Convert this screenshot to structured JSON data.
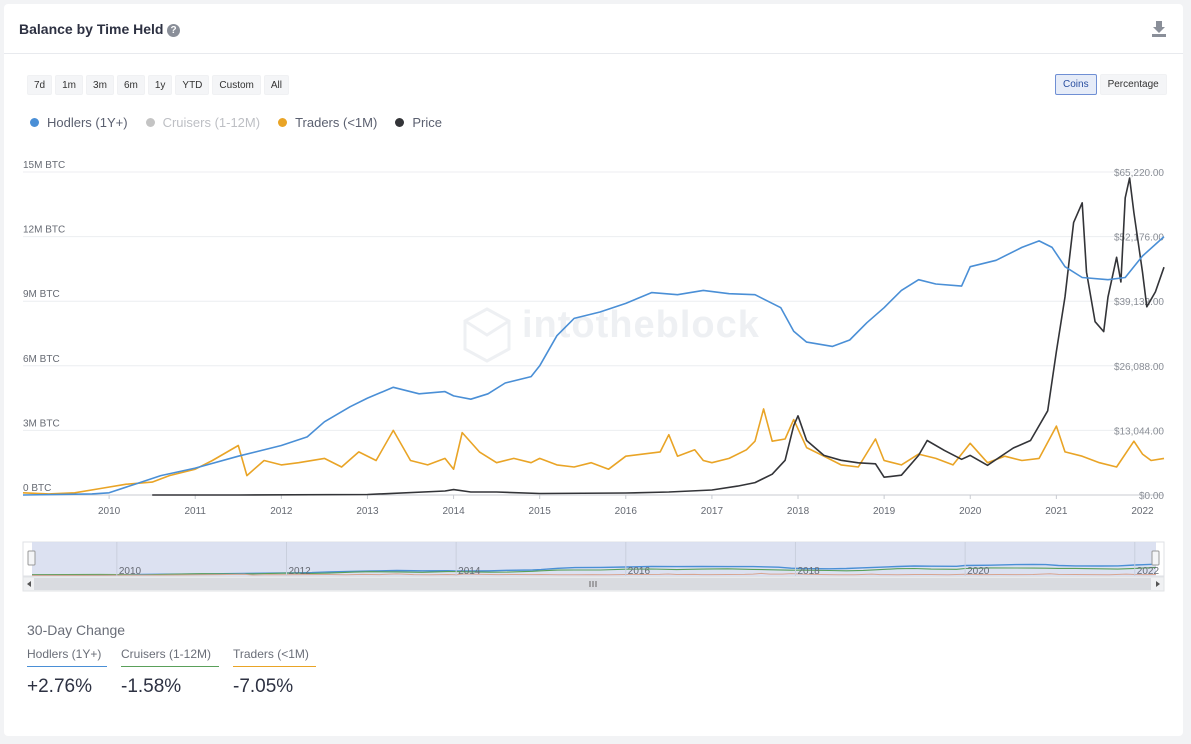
{
  "header": {
    "title": "Balance by Time Held",
    "help_icon": "?",
    "download_icon": "download-icon"
  },
  "range_buttons": [
    "7d",
    "1m",
    "3m",
    "6m",
    "1y",
    "YTD",
    "Custom",
    "All"
  ],
  "mode_buttons": [
    {
      "label": "Coins",
      "active": true
    },
    {
      "label": "Percentage",
      "active": false
    }
  ],
  "legend": [
    {
      "label": "Hodlers (1Y+)",
      "color": "#4a8fd6",
      "enabled": true
    },
    {
      "label": "Cruisers (1-12M)",
      "color": "#c4c4c4",
      "enabled": false
    },
    {
      "label": "Traders (<1M)",
      "color": "#e9a426",
      "enabled": true
    },
    {
      "label": "Price",
      "color": "#333438",
      "enabled": true
    }
  ],
  "watermark": "intotheblock",
  "chart_data": {
    "type": "line",
    "y_left": {
      "ticks": [
        "0 BTC",
        "3M BTC",
        "6M BTC",
        "9M BTC",
        "12M BTC",
        "15M BTC"
      ],
      "range": [
        0,
        15
      ]
    },
    "y_right": {
      "ticks": [
        "$0.00",
        "$13,044.00",
        "$26,088.00",
        "$39,132.00",
        "$52,176.00",
        "$65,220.00"
      ],
      "range": [
        0,
        65220
      ]
    },
    "x_ticks": [
      "2010",
      "2011",
      "2012",
      "2013",
      "2014",
      "2015",
      "2016",
      "2017",
      "2018",
      "2019",
      "2020",
      "2021",
      "2022"
    ],
    "x_range": [
      2009.0,
      2022.25
    ],
    "series": [
      {
        "name": "Hodlers (1Y+)",
        "axis": "left",
        "color": "#4a8fd6",
        "points": [
          [
            2009.0,
            0
          ],
          [
            2009.8,
            0.05
          ],
          [
            2010.0,
            0.1
          ],
          [
            2010.3,
            0.5
          ],
          [
            2010.6,
            0.9
          ],
          [
            2011.0,
            1.25
          ],
          [
            2011.5,
            1.8
          ],
          [
            2012.0,
            2.3
          ],
          [
            2012.3,
            2.7
          ],
          [
            2012.5,
            3.4
          ],
          [
            2012.8,
            4.1
          ],
          [
            2013.0,
            4.5
          ],
          [
            2013.3,
            5.0
          ],
          [
            2013.6,
            4.7
          ],
          [
            2013.9,
            4.8
          ],
          [
            2014.0,
            4.6
          ],
          [
            2014.2,
            4.45
          ],
          [
            2014.4,
            4.7
          ],
          [
            2014.6,
            5.2
          ],
          [
            2014.9,
            5.5
          ],
          [
            2015.0,
            6.0
          ],
          [
            2015.2,
            7.4
          ],
          [
            2015.4,
            8.2
          ],
          [
            2015.7,
            8.5
          ],
          [
            2016.0,
            8.9
          ],
          [
            2016.3,
            9.4
          ],
          [
            2016.6,
            9.3
          ],
          [
            2016.9,
            9.5
          ],
          [
            2017.2,
            9.35
          ],
          [
            2017.5,
            9.3
          ],
          [
            2017.8,
            8.7
          ],
          [
            2017.95,
            7.6
          ],
          [
            2018.1,
            7.1
          ],
          [
            2018.4,
            6.9
          ],
          [
            2018.6,
            7.2
          ],
          [
            2018.8,
            8.0
          ],
          [
            2019.0,
            8.7
          ],
          [
            2019.2,
            9.5
          ],
          [
            2019.4,
            10.0
          ],
          [
            2019.6,
            9.8
          ],
          [
            2019.9,
            9.7
          ],
          [
            2020.0,
            10.6
          ],
          [
            2020.3,
            10.9
          ],
          [
            2020.6,
            11.5
          ],
          [
            2020.8,
            11.8
          ],
          [
            2020.95,
            11.5
          ],
          [
            2021.1,
            10.6
          ],
          [
            2021.3,
            10.1
          ],
          [
            2021.6,
            10.0
          ],
          [
            2021.8,
            10.1
          ],
          [
            2022.0,
            11.1
          ],
          [
            2022.25,
            12.0
          ]
        ]
      },
      {
        "name": "Traders (<1M)",
        "axis": "left",
        "color": "#e9a426",
        "points": [
          [
            2009.0,
            0.1
          ],
          [
            2009.3,
            0.05
          ],
          [
            2009.6,
            0.1
          ],
          [
            2009.9,
            0.3
          ],
          [
            2010.2,
            0.5
          ],
          [
            2010.5,
            0.6
          ],
          [
            2010.7,
            0.9
          ],
          [
            2011.0,
            1.2
          ],
          [
            2011.2,
            1.6
          ],
          [
            2011.5,
            2.3
          ],
          [
            2011.6,
            0.9
          ],
          [
            2011.8,
            1.6
          ],
          [
            2012.0,
            1.4
          ],
          [
            2012.2,
            1.5
          ],
          [
            2012.5,
            1.7
          ],
          [
            2012.7,
            1.3
          ],
          [
            2012.9,
            2.0
          ],
          [
            2013.1,
            1.6
          ],
          [
            2013.3,
            3.0
          ],
          [
            2013.5,
            1.6
          ],
          [
            2013.7,
            1.4
          ],
          [
            2013.9,
            1.7
          ],
          [
            2014.0,
            1.2
          ],
          [
            2014.1,
            2.9
          ],
          [
            2014.3,
            2.0
          ],
          [
            2014.5,
            1.5
          ],
          [
            2014.7,
            1.7
          ],
          [
            2014.9,
            1.5
          ],
          [
            2015.0,
            1.7
          ],
          [
            2015.2,
            1.4
          ],
          [
            2015.4,
            1.3
          ],
          [
            2015.6,
            1.5
          ],
          [
            2015.8,
            1.2
          ],
          [
            2016.0,
            1.8
          ],
          [
            2016.2,
            1.9
          ],
          [
            2016.4,
            2.0
          ],
          [
            2016.5,
            2.8
          ],
          [
            2016.6,
            1.8
          ],
          [
            2016.8,
            2.1
          ],
          [
            2016.9,
            1.6
          ],
          [
            2017.0,
            1.5
          ],
          [
            2017.2,
            1.7
          ],
          [
            2017.4,
            2.1
          ],
          [
            2017.5,
            2.5
          ],
          [
            2017.6,
            4.0
          ],
          [
            2017.7,
            2.5
          ],
          [
            2017.85,
            2.6
          ],
          [
            2017.95,
            3.5
          ],
          [
            2018.1,
            2.2
          ],
          [
            2018.3,
            1.8
          ],
          [
            2018.5,
            1.4
          ],
          [
            2018.7,
            1.3
          ],
          [
            2018.9,
            2.6
          ],
          [
            2019.0,
            1.6
          ],
          [
            2019.2,
            1.4
          ],
          [
            2019.4,
            1.9
          ],
          [
            2019.6,
            1.7
          ],
          [
            2019.8,
            1.4
          ],
          [
            2020.0,
            2.4
          ],
          [
            2020.2,
            1.5
          ],
          [
            2020.4,
            1.8
          ],
          [
            2020.6,
            1.6
          ],
          [
            2020.8,
            1.7
          ],
          [
            2021.0,
            3.2
          ],
          [
            2021.1,
            2.0
          ],
          [
            2021.3,
            1.8
          ],
          [
            2021.5,
            1.5
          ],
          [
            2021.7,
            1.3
          ],
          [
            2021.9,
            2.5
          ],
          [
            2022.0,
            1.9
          ],
          [
            2022.1,
            1.6
          ],
          [
            2022.25,
            1.7
          ]
        ]
      },
      {
        "name": "Price",
        "axis": "right",
        "color": "#333438",
        "points": [
          [
            2010.5,
            0
          ],
          [
            2011.5,
            0
          ],
          [
            2013.0,
            100
          ],
          [
            2013.9,
            800
          ],
          [
            2014.0,
            1100
          ],
          [
            2014.2,
            600
          ],
          [
            2014.5,
            600
          ],
          [
            2015.0,
            300
          ],
          [
            2016.0,
            400
          ],
          [
            2016.5,
            600
          ],
          [
            2017.0,
            1000
          ],
          [
            2017.3,
            1800
          ],
          [
            2017.5,
            2500
          ],
          [
            2017.7,
            4200
          ],
          [
            2017.85,
            7000
          ],
          [
            2017.95,
            14000
          ],
          [
            2018.0,
            16000
          ],
          [
            2018.1,
            11000
          ],
          [
            2018.3,
            8000
          ],
          [
            2018.5,
            7000
          ],
          [
            2018.7,
            6500
          ],
          [
            2018.9,
            6300
          ],
          [
            2019.0,
            3600
          ],
          [
            2019.2,
            4000
          ],
          [
            2019.4,
            8000
          ],
          [
            2019.5,
            11000
          ],
          [
            2019.7,
            9000
          ],
          [
            2019.9,
            7200
          ],
          [
            2020.0,
            8000
          ],
          [
            2020.2,
            6000
          ],
          [
            2020.5,
            9500
          ],
          [
            2020.7,
            11000
          ],
          [
            2020.9,
            17000
          ],
          [
            2021.0,
            29000
          ],
          [
            2021.1,
            40000
          ],
          [
            2021.2,
            55000
          ],
          [
            2021.3,
            59000
          ],
          [
            2021.35,
            45000
          ],
          [
            2021.45,
            35000
          ],
          [
            2021.55,
            33000
          ],
          [
            2021.6,
            40000
          ],
          [
            2021.7,
            48000
          ],
          [
            2021.75,
            43000
          ],
          [
            2021.8,
            60000
          ],
          [
            2021.85,
            64000
          ],
          [
            2021.9,
            57000
          ],
          [
            2022.0,
            45000
          ],
          [
            2022.05,
            38000
          ],
          [
            2022.15,
            41000
          ],
          [
            2022.25,
            46000
          ]
        ]
      }
    ],
    "navigator": {
      "x_ticks": [
        "2010",
        "2012",
        "2014",
        "2016",
        "2018",
        "2020",
        "2022"
      ]
    }
  },
  "thirty_day": {
    "title": "30-Day Change",
    "items": [
      {
        "label": "Hodlers (1Y+)",
        "value": "+2.76%",
        "color": "#4a8fd6"
      },
      {
        "label": "Cruisers (1-12M)",
        "value": "-1.58%",
        "color": "#5aa05a"
      },
      {
        "label": "Traders (<1M)",
        "value": "-7.05%",
        "color": "#e9a426"
      }
    ]
  }
}
